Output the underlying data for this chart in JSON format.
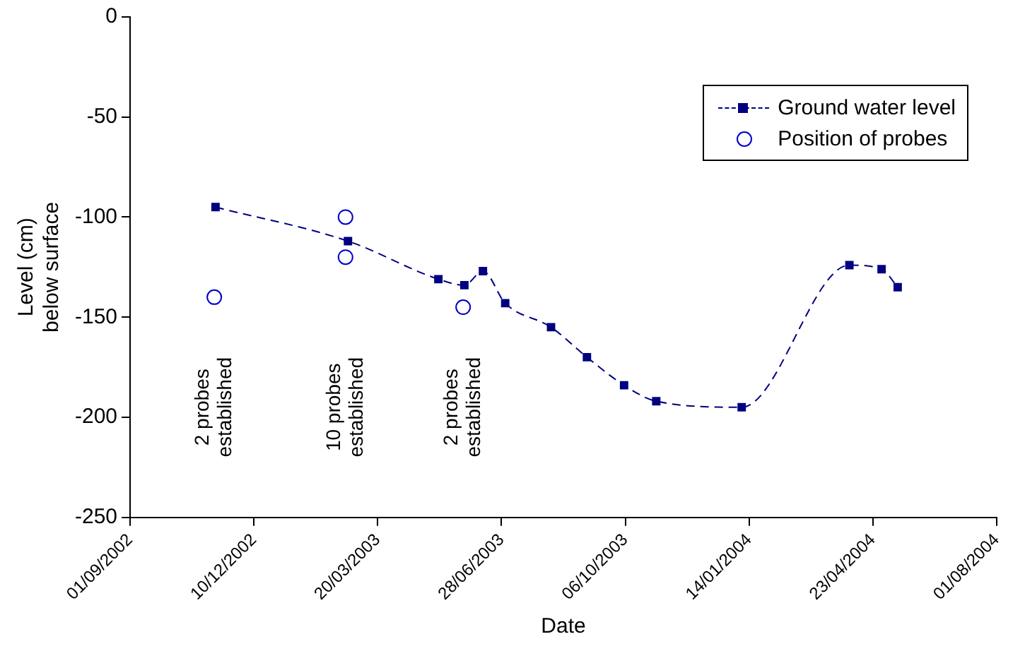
{
  "chart_data": {
    "type": "line",
    "xlabel": "Date",
    "ylabel": "Level (cm)\nbelow surface",
    "xlim": [
      "2002-09-01",
      "2004-08-01"
    ],
    "xticks": [
      {
        "value": "2002-09-01",
        "label": "01/09/2002"
      },
      {
        "value": "2002-12-10",
        "label": "10/12/2002"
      },
      {
        "value": "2003-03-20",
        "label": "20/03/2003"
      },
      {
        "value": "2003-06-28",
        "label": "28/06/2003"
      },
      {
        "value": "2003-10-06",
        "label": "06/10/2003"
      },
      {
        "value": "2004-01-14",
        "label": "14/01/2004"
      },
      {
        "value": "2004-04-23",
        "label": "23/04/2004"
      },
      {
        "value": "2004-08-01",
        "label": "01/08/2004"
      }
    ],
    "ylim": [
      -250,
      0
    ],
    "yticks": [
      -250,
      -200,
      -150,
      -100,
      -50,
      0
    ],
    "grid": false,
    "legend": "top right",
    "series": [
      {
        "name": "Ground water level",
        "color": "#000080",
        "line_style": "dashed",
        "marker": "square",
        "x": [
          "2002-11-09",
          "2003-02-24",
          "2003-05-08",
          "2003-05-29",
          "2003-06-13",
          "2003-07-01",
          "2003-08-07",
          "2003-09-05",
          "2003-10-05",
          "2003-10-31",
          "2004-01-08",
          "2004-04-04",
          "2004-04-30",
          "2004-05-13"
        ],
        "values": [
          -95,
          -112,
          -131,
          -134,
          -127,
          -143,
          -155,
          -170,
          -184,
          -192,
          -195,
          -124,
          -126,
          -135
        ]
      },
      {
        "name": "Position of probes",
        "type": "scatter",
        "color": "#0000cc",
        "marker": "circle",
        "x": [
          "2002-11-08",
          "2003-02-22",
          "2003-02-22",
          "2003-05-28"
        ],
        "values": [
          -140,
          -100,
          -120,
          -145
        ]
      }
    ],
    "annotations": [
      "2 probes\nestablished",
      "10 probes\nestablished",
      "2 probes\nestablished"
    ]
  }
}
